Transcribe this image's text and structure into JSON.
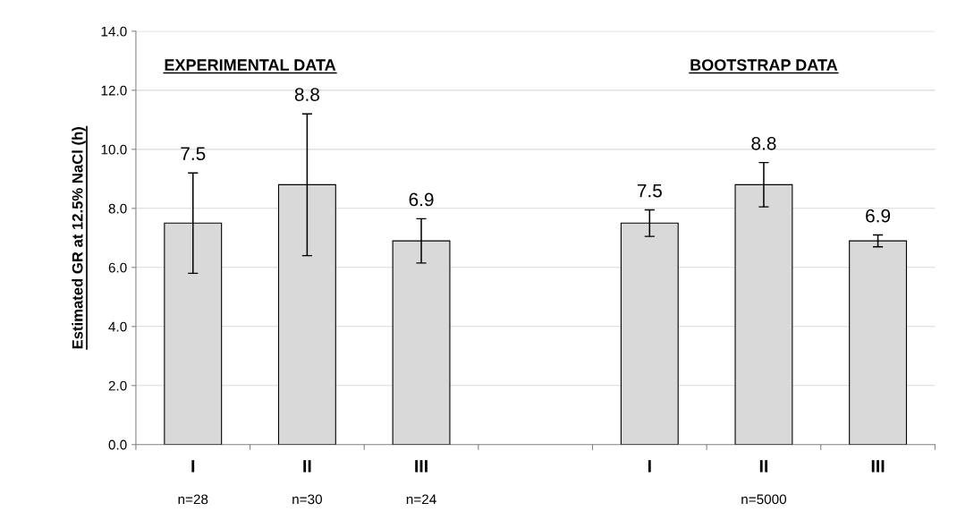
{
  "chart_data": {
    "type": "bar",
    "ylabel": "Estimated GR at 12.5% NaCl (h)",
    "categories": [
      "I",
      "II",
      "III",
      null,
      "I",
      "II",
      "III"
    ],
    "values": [
      7.5,
      8.8,
      6.9,
      null,
      7.5,
      8.8,
      6.9
    ],
    "errors": [
      1.7,
      2.4,
      0.75,
      null,
      0.45,
      0.75,
      0.2
    ],
    "color": "#d9d9d9",
    "value_labels": [
      null,
      null,
      "6.9",
      null,
      "7.5",
      "8.8",
      "6.9"
    ],
    "ylim": [
      0,
      14
    ],
    "yticks": [
      {
        "value": 0,
        "label": "0.0"
      },
      {
        "value": 2,
        "label": "2.0"
      },
      {
        "value": 4,
        "label": "4.0"
      },
      {
        "value": 6,
        "label": "6.0"
      },
      {
        "value": 8,
        "label": "8.0"
      },
      {
        "value": 10,
        "label": "10.0"
      },
      {
        "value": 12,
        "label": "12.0"
      },
      {
        "value": 14,
        "label": "14.0"
      }
    ],
    "grid": "y",
    "annotations": [
      "EXPERIMENTAL DATA",
      "BOOTSTRAP DATA",
      "n=28",
      "n=30",
      "n=24",
      "n=5000",
      "7.5",
      "8.8"
    ]
  }
}
